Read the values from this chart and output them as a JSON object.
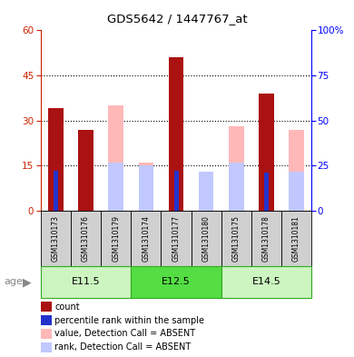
{
  "title": "GDS5642 / 1447767_at",
  "samples": [
    "GSM1310173",
    "GSM1310176",
    "GSM1310179",
    "GSM1310174",
    "GSM1310177",
    "GSM1310180",
    "GSM1310175",
    "GSM1310178",
    "GSM1310181"
  ],
  "age_groups": [
    {
      "label": "E11.5",
      "start": 0,
      "end": 3
    },
    {
      "label": "E12.5",
      "start": 3,
      "end": 6
    },
    {
      "label": "E14.5",
      "start": 6,
      "end": 9
    }
  ],
  "count_values": [
    34,
    27,
    0,
    0,
    51,
    0,
    0,
    39,
    0
  ],
  "percentile_rank_values": [
    22,
    0,
    0,
    0,
    22,
    0,
    0,
    21,
    0
  ],
  "absent_value_values": [
    0,
    0,
    35,
    16,
    0,
    9,
    28,
    0,
    27
  ],
  "absent_rank_values": [
    0,
    0,
    16,
    15,
    0,
    13,
    16,
    0,
    13
  ],
  "ylim_left": [
    0,
    60
  ],
  "ylim_right": [
    0,
    100
  ],
  "yticks_left": [
    0,
    15,
    30,
    45,
    60
  ],
  "yticks_right": [
    0,
    25,
    50,
    75,
    100
  ],
  "color_count": "#aa1111",
  "color_percentile": "#2233cc",
  "color_absent_value": "#ffb8b8",
  "color_absent_rank": "#c0c8ff",
  "color_sample_bg": "#d0d0d0",
  "age_colors": [
    "#ccf5c0",
    "#55dd44",
    "#ccf5c0"
  ],
  "age_border": "#33aa22",
  "bar_width": 0.5,
  "figsize": [
    3.9,
    3.93
  ],
  "dpi": 100
}
